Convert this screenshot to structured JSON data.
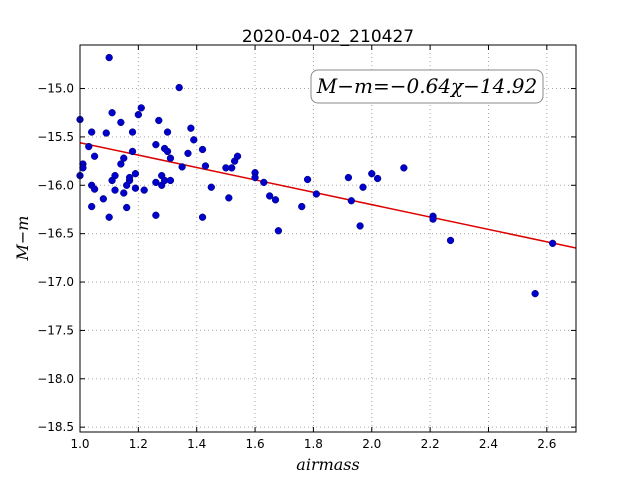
{
  "chart_data": {
    "type": "scatter",
    "title": "2020-04-02_210427",
    "xlabel": "airmass",
    "ylabel": "M−m",
    "xlim": [
      1.0,
      2.7
    ],
    "ylim": [
      -18.55,
      -14.55
    ],
    "x_ticks": [
      1.0,
      1.2,
      1.4,
      1.6,
      1.8,
      2.0,
      2.2,
      2.4,
      2.6
    ],
    "x_tick_labels": [
      "1.0",
      "1.2",
      "1.4",
      "1.6",
      "1.8",
      "2.0",
      "2.2",
      "2.4",
      "2.6"
    ],
    "y_ticks": [
      -15.0,
      -15.5,
      -16.0,
      -16.5,
      -17.0,
      -17.5,
      -18.0,
      -18.5
    ],
    "y_tick_labels": [
      "−15.0",
      "−15.5",
      "−16.0",
      "−16.5",
      "−17.0",
      "−17.5",
      "−18.0",
      "−18.5"
    ],
    "grid": true,
    "annotation": "M−m=−0.64χ−14.92",
    "colors": {
      "points": "#0000cc",
      "fit_line": "#dd0000",
      "grid": "#aaaaaa"
    },
    "fit_line": {
      "slope": -0.64,
      "intercept": -14.92
    },
    "series": [
      {
        "points": [
          [
            1.0,
            -15.32
          ],
          [
            1.0,
            -15.9
          ],
          [
            1.01,
            -15.78
          ],
          [
            1.01,
            -15.82
          ],
          [
            1.03,
            -15.6
          ],
          [
            1.04,
            -15.45
          ],
          [
            1.04,
            -16.22
          ],
          [
            1.04,
            -16.0
          ],
          [
            1.05,
            -16.04
          ],
          [
            1.05,
            -15.7
          ],
          [
            1.08,
            -16.14
          ],
          [
            1.09,
            -15.46
          ],
          [
            1.1,
            -14.68
          ],
          [
            1.1,
            -16.33
          ],
          [
            1.11,
            -15.25
          ],
          [
            1.11,
            -15.95
          ],
          [
            1.12,
            -15.9
          ],
          [
            1.12,
            -16.05
          ],
          [
            1.14,
            -15.35
          ],
          [
            1.14,
            -15.78
          ],
          [
            1.15,
            -15.72
          ],
          [
            1.15,
            -16.08
          ],
          [
            1.16,
            -16.23
          ],
          [
            1.16,
            -16.0
          ],
          [
            1.17,
            -15.95
          ],
          [
            1.17,
            -15.92
          ],
          [
            1.18,
            -15.65
          ],
          [
            1.18,
            -15.45
          ],
          [
            1.19,
            -16.03
          ],
          [
            1.19,
            -15.88
          ],
          [
            1.2,
            -15.27
          ],
          [
            1.21,
            -15.2
          ],
          [
            1.22,
            -16.05
          ],
          [
            1.26,
            -16.31
          ],
          [
            1.26,
            -15.97
          ],
          [
            1.26,
            -15.58
          ],
          [
            1.27,
            -15.33
          ],
          [
            1.28,
            -15.9
          ],
          [
            1.28,
            -16.0
          ],
          [
            1.29,
            -15.95
          ],
          [
            1.29,
            -15.62
          ],
          [
            1.3,
            -15.45
          ],
          [
            1.3,
            -15.65
          ],
          [
            1.31,
            -15.72
          ],
          [
            1.31,
            -15.95
          ],
          [
            1.34,
            -14.99
          ],
          [
            1.35,
            -15.81
          ],
          [
            1.37,
            -15.67
          ],
          [
            1.38,
            -15.41
          ],
          [
            1.39,
            -15.53
          ],
          [
            1.42,
            -16.33
          ],
          [
            1.42,
            -15.63
          ],
          [
            1.43,
            -15.8
          ],
          [
            1.45,
            -16.02
          ],
          [
            1.5,
            -15.82
          ],
          [
            1.51,
            -16.13
          ],
          [
            1.52,
            -15.82
          ],
          [
            1.53,
            -15.75
          ],
          [
            1.54,
            -15.7
          ],
          [
            1.6,
            -15.87
          ],
          [
            1.6,
            -15.92
          ],
          [
            1.63,
            -15.97
          ],
          [
            1.65,
            -16.11
          ],
          [
            1.67,
            -16.15
          ],
          [
            1.68,
            -16.47
          ],
          [
            1.76,
            -16.22
          ],
          [
            1.78,
            -15.94
          ],
          [
            1.81,
            -16.09
          ],
          [
            1.92,
            -15.92
          ],
          [
            1.93,
            -16.16
          ],
          [
            1.96,
            -16.42
          ],
          [
            1.97,
            -16.02
          ],
          [
            2.0,
            -15.88
          ],
          [
            2.02,
            -15.93
          ],
          [
            2.11,
            -15.82
          ],
          [
            2.21,
            -16.32
          ],
          [
            2.21,
            -16.35
          ],
          [
            2.27,
            -16.57
          ],
          [
            2.56,
            -17.12
          ],
          [
            2.62,
            -16.6
          ]
        ]
      }
    ]
  }
}
